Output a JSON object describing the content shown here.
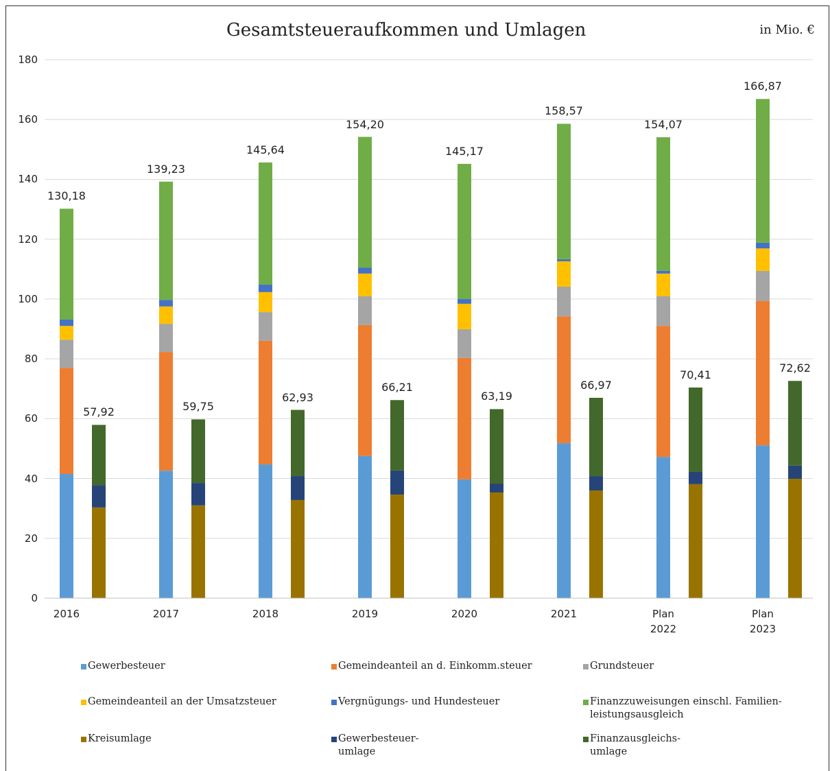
{
  "chart_data": {
    "type": "stacked_bar_groups",
    "title": "Gesamtsteueraufkommen und Umlagen",
    "unit_label": "in Mio. €",
    "categories": [
      "2016",
      "2017",
      "2018",
      "2019",
      "2020",
      "2021",
      "Plan\n2022",
      "Plan\n2023"
    ],
    "ylim": [
      0,
      180
    ],
    "yticks": [
      0,
      20,
      40,
      60,
      80,
      100,
      120,
      140,
      160,
      180
    ],
    "grid": true,
    "stacks": [
      {
        "series": [
          {
            "name": "Gewerbesteuer",
            "color": "#5b9bd5",
            "values": [
              41.5,
              42.6,
              44.7,
              47.5,
              39.7,
              51.8,
              47.2,
              51.1
            ]
          },
          {
            "name": "Gemeindeanteil an d. Einkomm.steuer",
            "color": "#ed7d31",
            "values": [
              35.5,
              39.7,
              41.3,
              43.8,
              40.6,
              42.4,
              43.8,
              48.2
            ]
          },
          {
            "name": "Grundsteuer",
            "color": "#a5a5a5",
            "values": [
              9.4,
              9.4,
              9.6,
              9.6,
              9.6,
              9.9,
              9.9,
              10.1
            ]
          },
          {
            "name": "Gemeindeanteil an der Umsatzsteuer",
            "color": "#ffc000",
            "values": [
              4.6,
              5.8,
              6.7,
              7.6,
              8.5,
              8.5,
              7.6,
              7.5
            ]
          },
          {
            "name": "Vergnügungs- und Hundesteuer",
            "color": "#4472c4",
            "values": [
              2.1,
              2.2,
              2.5,
              2.0,
              1.6,
              0.7,
              0.9,
              1.9
            ]
          },
          {
            "name": "Finanzzuweisungen einschl. Familien-\nleistungsausgleich",
            "color": "#70ad47",
            "values": [
              37.08,
              39.53,
              40.84,
              43.7,
              45.17,
              45.27,
              44.67,
              48.07
            ]
          }
        ],
        "totals": [
          130.18,
          139.23,
          145.64,
          154.2,
          145.17,
          158.57,
          154.07,
          166.87
        ],
        "total_labels": [
          "130,18",
          "139,23",
          "145,64",
          "154,20",
          "145,17",
          "158,57",
          "154,07",
          "166,87"
        ]
      },
      {
        "series": [
          {
            "name": "Kreisumlage",
            "color": "#997300",
            "values": [
              30.3,
              31.0,
              32.8,
              34.6,
              35.3,
              36.0,
              38.1,
              39.9
            ]
          },
          {
            "name": "Gewerbesteuer-\numlage",
            "color": "#264478",
            "values": [
              7.5,
              7.5,
              8.0,
              8.1,
              3.0,
              4.8,
              4.1,
              4.4
            ]
          },
          {
            "name": "Finanzausgleichs-\numlage",
            "color": "#43682b",
            "values": [
              20.12,
              21.25,
              22.13,
              23.51,
              24.89,
              26.17,
              28.21,
              28.32
            ]
          }
        ],
        "totals": [
          57.92,
          59.75,
          62.93,
          66.21,
          63.19,
          66.97,
          70.41,
          72.62
        ],
        "total_labels": [
          "57,92",
          "59,75",
          "62,93",
          "66,21",
          "63,19",
          "66,97",
          "70,41",
          "72,62"
        ]
      }
    ]
  }
}
